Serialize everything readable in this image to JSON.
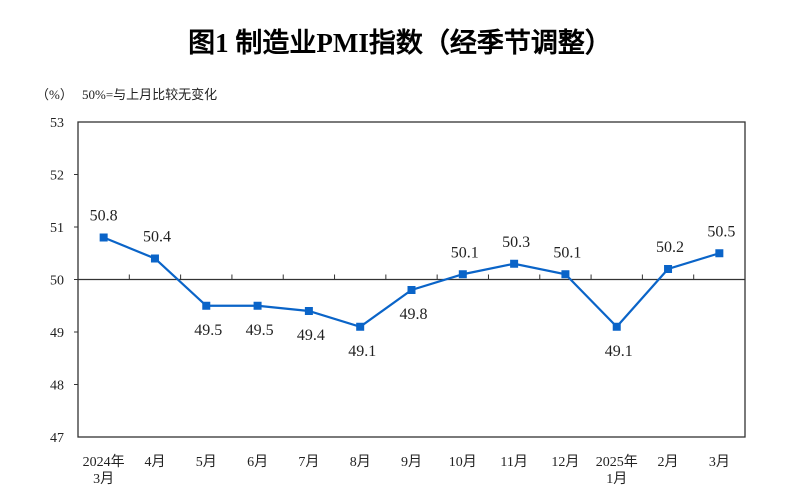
{
  "chart_data": {
    "type": "line",
    "title": "图1  制造业PMI指数（经季节调整）",
    "ylabel": "（%）",
    "note": "50%=与上月比较无变化",
    "categories": [
      "2024年\n3月",
      "4月",
      "5月",
      "6月",
      "7月",
      "8月",
      "9月",
      "10月",
      "11月",
      "12月",
      "2025年\n1月",
      "2月",
      "3月"
    ],
    "values": [
      50.8,
      50.4,
      49.5,
      49.5,
      49.4,
      49.1,
      49.8,
      50.1,
      50.3,
      50.1,
      49.1,
      50.2,
      50.5
    ],
    "ylim": [
      47,
      53
    ],
    "yticks": [
      47,
      48,
      49,
      50,
      51,
      52,
      53
    ],
    "reference_line": 50,
    "grid": false,
    "legend": "none",
    "colors": {
      "series": "#0A64C8",
      "axis": "#333333"
    }
  }
}
